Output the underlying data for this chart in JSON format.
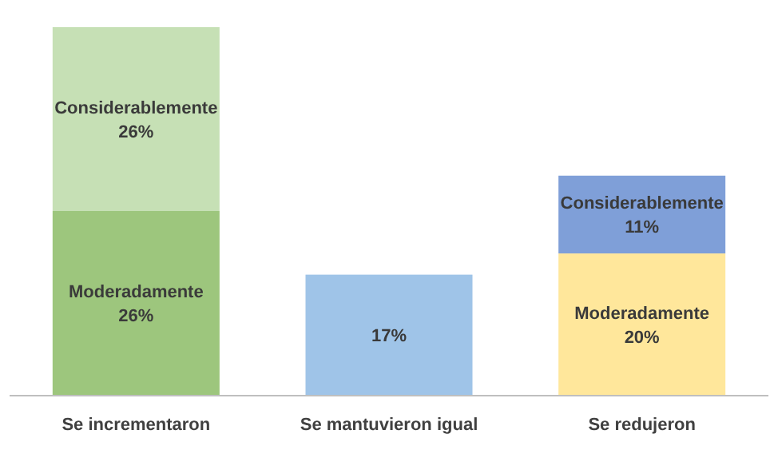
{
  "chart_data": {
    "type": "bar",
    "stacked": true,
    "categories": [
      "Se incrementaron",
      "Se mantuvieron igual",
      "Se redujeron"
    ],
    "series": [
      {
        "name": "Moderadamente",
        "colors": [
          "#9dc67d",
          null,
          "#ffe79b"
        ],
        "values": [
          26,
          null,
          20
        ],
        "value_labels": [
          "26%",
          null,
          "20%"
        ]
      },
      {
        "colors": [
          null,
          "#9fc4e8",
          null
        ],
        "values": [
          null,
          17,
          null
        ],
        "value_labels": [
          null,
          "17%",
          null
        ]
      },
      {
        "name": "Considerablemente",
        "colors": [
          "#c6e0b5",
          null,
          "#7f9fd8"
        ],
        "values": [
          26,
          null,
          11
        ],
        "value_labels": [
          "26%",
          null,
          "11%"
        ]
      }
    ]
  }
}
